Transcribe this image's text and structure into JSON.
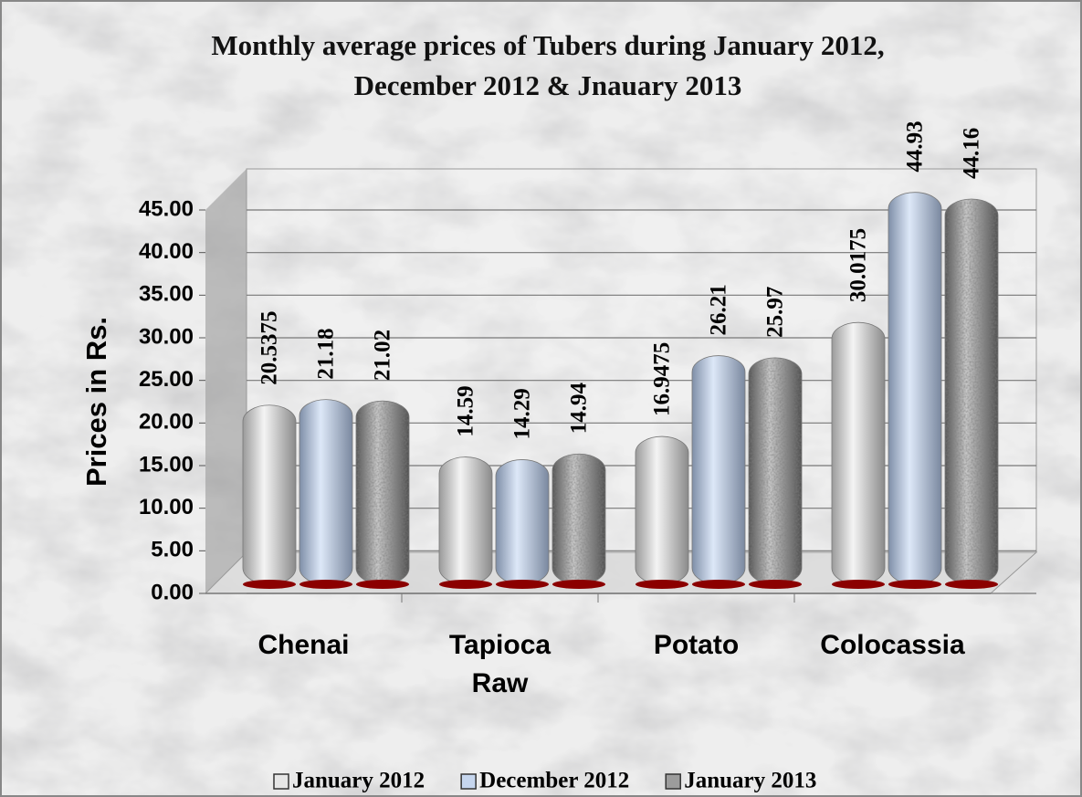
{
  "chart_data": {
    "type": "bar",
    "title": "Monthly average prices of Tubers during January 2012,\nDecember 2012 & Jnauary 2013",
    "y_label": "Prices in Rs.",
    "categories": [
      "Chenai",
      "Tapioca Raw",
      "Potato",
      "Colocassia"
    ],
    "series": [
      {
        "name": "January 2012",
        "color": "#e6e6e6",
        "values": [
          20.5375,
          14.59,
          16.9475,
          30.0175
        ]
      },
      {
        "name": "December 2012",
        "color": "#c6d6ee",
        "values": [
          21.18,
          14.29,
          26.21,
          44.93
        ]
      },
      {
        "name": "January 2013",
        "color": "#9c9c9c",
        "values": [
          21.02,
          14.94,
          25.97,
          44.16
        ]
      }
    ],
    "ylim": [
      0,
      45
    ],
    "yticks": [
      {
        "value": 0,
        "label": "0.00"
      },
      {
        "value": 5,
        "label": "5.00"
      },
      {
        "value": 10,
        "label": "10.00"
      },
      {
        "value": 15,
        "label": "15.00"
      },
      {
        "value": 20,
        "label": "20.00"
      },
      {
        "value": 25,
        "label": "25.00"
      },
      {
        "value": 30,
        "label": "30.00"
      },
      {
        "value": 35,
        "label": "35.00"
      },
      {
        "value": 40,
        "label": "40.00"
      },
      {
        "value": 45,
        "label": "45.00"
      }
    ],
    "grid": true,
    "legend": "bottom"
  }
}
